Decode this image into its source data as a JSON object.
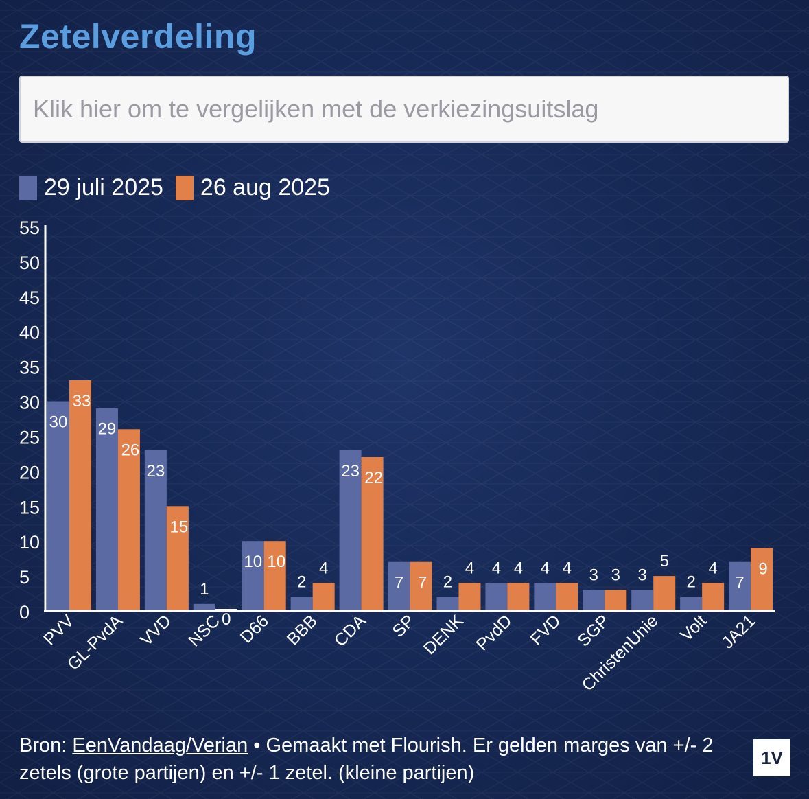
{
  "header": {
    "title": "Zetelverdeling"
  },
  "compare_button": {
    "label": "Klik hier om te vergelijken met de verkiezingsuitslag"
  },
  "colors": {
    "series1": "#5b6aa3",
    "series2": "#e2804a",
    "title": "#5b9ee0"
  },
  "chart_data": {
    "type": "bar",
    "title": "Zetelverdeling",
    "categories": [
      "PVV",
      "GL-PvdA",
      "VVD",
      "NSC",
      "D66",
      "BBB",
      "CDA",
      "SP",
      "DENK",
      "PvdD",
      "FVD",
      "SGP",
      "ChristenUnie",
      "Volt",
      "JA21"
    ],
    "series": [
      {
        "name": "29 juli 2025",
        "values": [
          30,
          29,
          23,
          1,
          10,
          2,
          23,
          7,
          2,
          4,
          4,
          3,
          3,
          2,
          7
        ]
      },
      {
        "name": "26 aug 2025",
        "values": [
          33,
          26,
          15,
          0,
          10,
          4,
          22,
          7,
          4,
          4,
          4,
          3,
          5,
          4,
          9
        ]
      }
    ],
    "yticks": [
      "0",
      "5",
      "10",
      "15",
      "20",
      "25",
      "30",
      "35",
      "40",
      "45",
      "50",
      "55"
    ],
    "ylim": [
      0,
      55
    ],
    "xlabel": "",
    "ylabel": "",
    "grid": false,
    "legend": "top-left"
  },
  "footer": {
    "source_prefix": "Bron: ",
    "source_link": "EenVandaag/Verian",
    "text": " • Gemaakt met Flourish. Er gelden marges van +/- 2 zetels (grote partijen) en +/- 1 zetel. (kleine partijen)"
  },
  "logo": {
    "text": "1V"
  }
}
